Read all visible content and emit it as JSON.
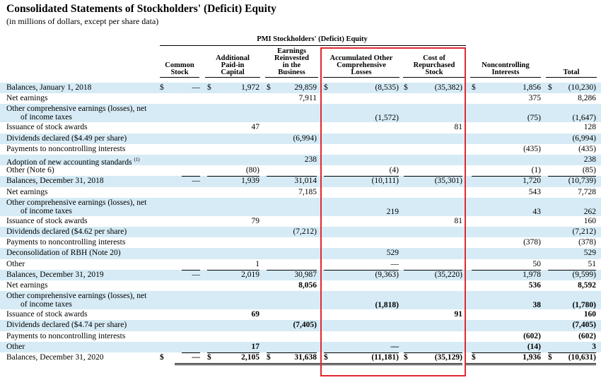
{
  "title": "Consolidated Statements of Stockholders' (Deficit) Equity",
  "subtitle": "(in millions of dollars, except per share data)",
  "group_header": "PMI Stockholders' (Deficit) Equity",
  "columns": {
    "common": "Common\nStock",
    "apic": "Additional\nPaid-in\nCapital",
    "earnings": "Earnings\nReinvested\nin the\nBusiness",
    "aoci": "Accumulated Other\nComprehensive\nLosses",
    "treasury": "Cost of\nRepurchased\nStock",
    "nci": "Noncontrolling\nInterests",
    "total": "Total"
  },
  "currency_symbol": "$",
  "highlight_color": "#e0282e",
  "row_shade_color": "#d6ebf5",
  "rows": [
    {
      "label": "Balances, January 1, 2018",
      "common": "—",
      "apic": "1,972",
      "earnings": "29,859",
      "aoci": "(8,535)",
      "treasury": "(35,382)",
      "nci": "1,856",
      "total": "(10,230)"
    },
    {
      "label": "Net earnings",
      "earnings": "7,911",
      "nci": "375",
      "total": "8,286"
    },
    {
      "label": "Other comprehensive earnings (losses), net",
      "label2": "of income taxes",
      "aoci": "(1,572)",
      "nci": "(75)",
      "total": "(1,647)"
    },
    {
      "label": "Issuance of stock awards",
      "apic": "47",
      "treasury": "81",
      "total": "128"
    },
    {
      "label": "Dividends declared ($4.49 per share)",
      "earnings": "(6,994)",
      "total": "(6,994)"
    },
    {
      "label": "Payments to noncontrolling interests",
      "nci": "(435)",
      "total": "(435)"
    },
    {
      "label": "Adoption of new accounting standards",
      "sup": "(1)",
      "earnings": "238",
      "total": "238"
    },
    {
      "label": "Other (Note 6)",
      "apic": "(80)",
      "aoci": "(4)",
      "nci": "(1)",
      "total": "(85)"
    },
    {
      "label": "Balances, December 31, 2018",
      "common": "—",
      "apic": "1,939",
      "earnings": "31,014",
      "aoci": "(10,111)",
      "treasury": "(35,301)",
      "nci": "1,720",
      "total": "(10,739)"
    },
    {
      "label": "Net earnings",
      "earnings": "7,185",
      "nci": "543",
      "total": "7,728"
    },
    {
      "label": "Other comprehensive earnings (losses), net",
      "label2": "of income taxes",
      "aoci": "219",
      "nci": "43",
      "total": "262"
    },
    {
      "label": "Issuance of stock awards",
      "apic": "79",
      "treasury": "81",
      "total": "160"
    },
    {
      "label": "Dividends declared ($4.62 per share)",
      "earnings": "(7,212)",
      "total": "(7,212)"
    },
    {
      "label": "Payments to noncontrolling interests",
      "nci": "(378)",
      "total": "(378)"
    },
    {
      "label": "Deconsolidation of RBH (Note 20)",
      "aoci": "529",
      "total": "529"
    },
    {
      "label": "Other",
      "apic": "1",
      "aoci": "—",
      "nci": "50",
      "total": "51"
    },
    {
      "label": "Balances, December 31, 2019",
      "common": "—",
      "apic": "2,019",
      "earnings": "30,987",
      "aoci": "(9,363)",
      "treasury": "(35,220)",
      "nci": "1,978",
      "total": "(9,599)"
    },
    {
      "label": "Net earnings",
      "earnings": "8,056",
      "nci": "536",
      "total": "8,592"
    },
    {
      "label": "Other comprehensive earnings (losses), net",
      "label2": "of income taxes",
      "aoci": "(1,818)",
      "nci": "38",
      "total": "(1,780)"
    },
    {
      "label": "Issuance of stock awards",
      "apic": "69",
      "treasury": "91",
      "total": "160"
    },
    {
      "label": "Dividends declared ($4.74 per share)",
      "earnings": "(7,405)",
      "total": "(7,405)"
    },
    {
      "label": "Payments to noncontrolling interests",
      "nci": "(602)",
      "total": "(602)"
    },
    {
      "label": "Other",
      "apic": "17",
      "aoci": "—",
      "nci": "(14)",
      "total": "3"
    },
    {
      "label": "Balances, December 31, 2020",
      "common": "—",
      "apic": "2,105",
      "earnings": "31,638",
      "aoci": "(11,181)",
      "treasury": "(35,129)",
      "nci": "1,936",
      "total": "(10,631)"
    }
  ]
}
